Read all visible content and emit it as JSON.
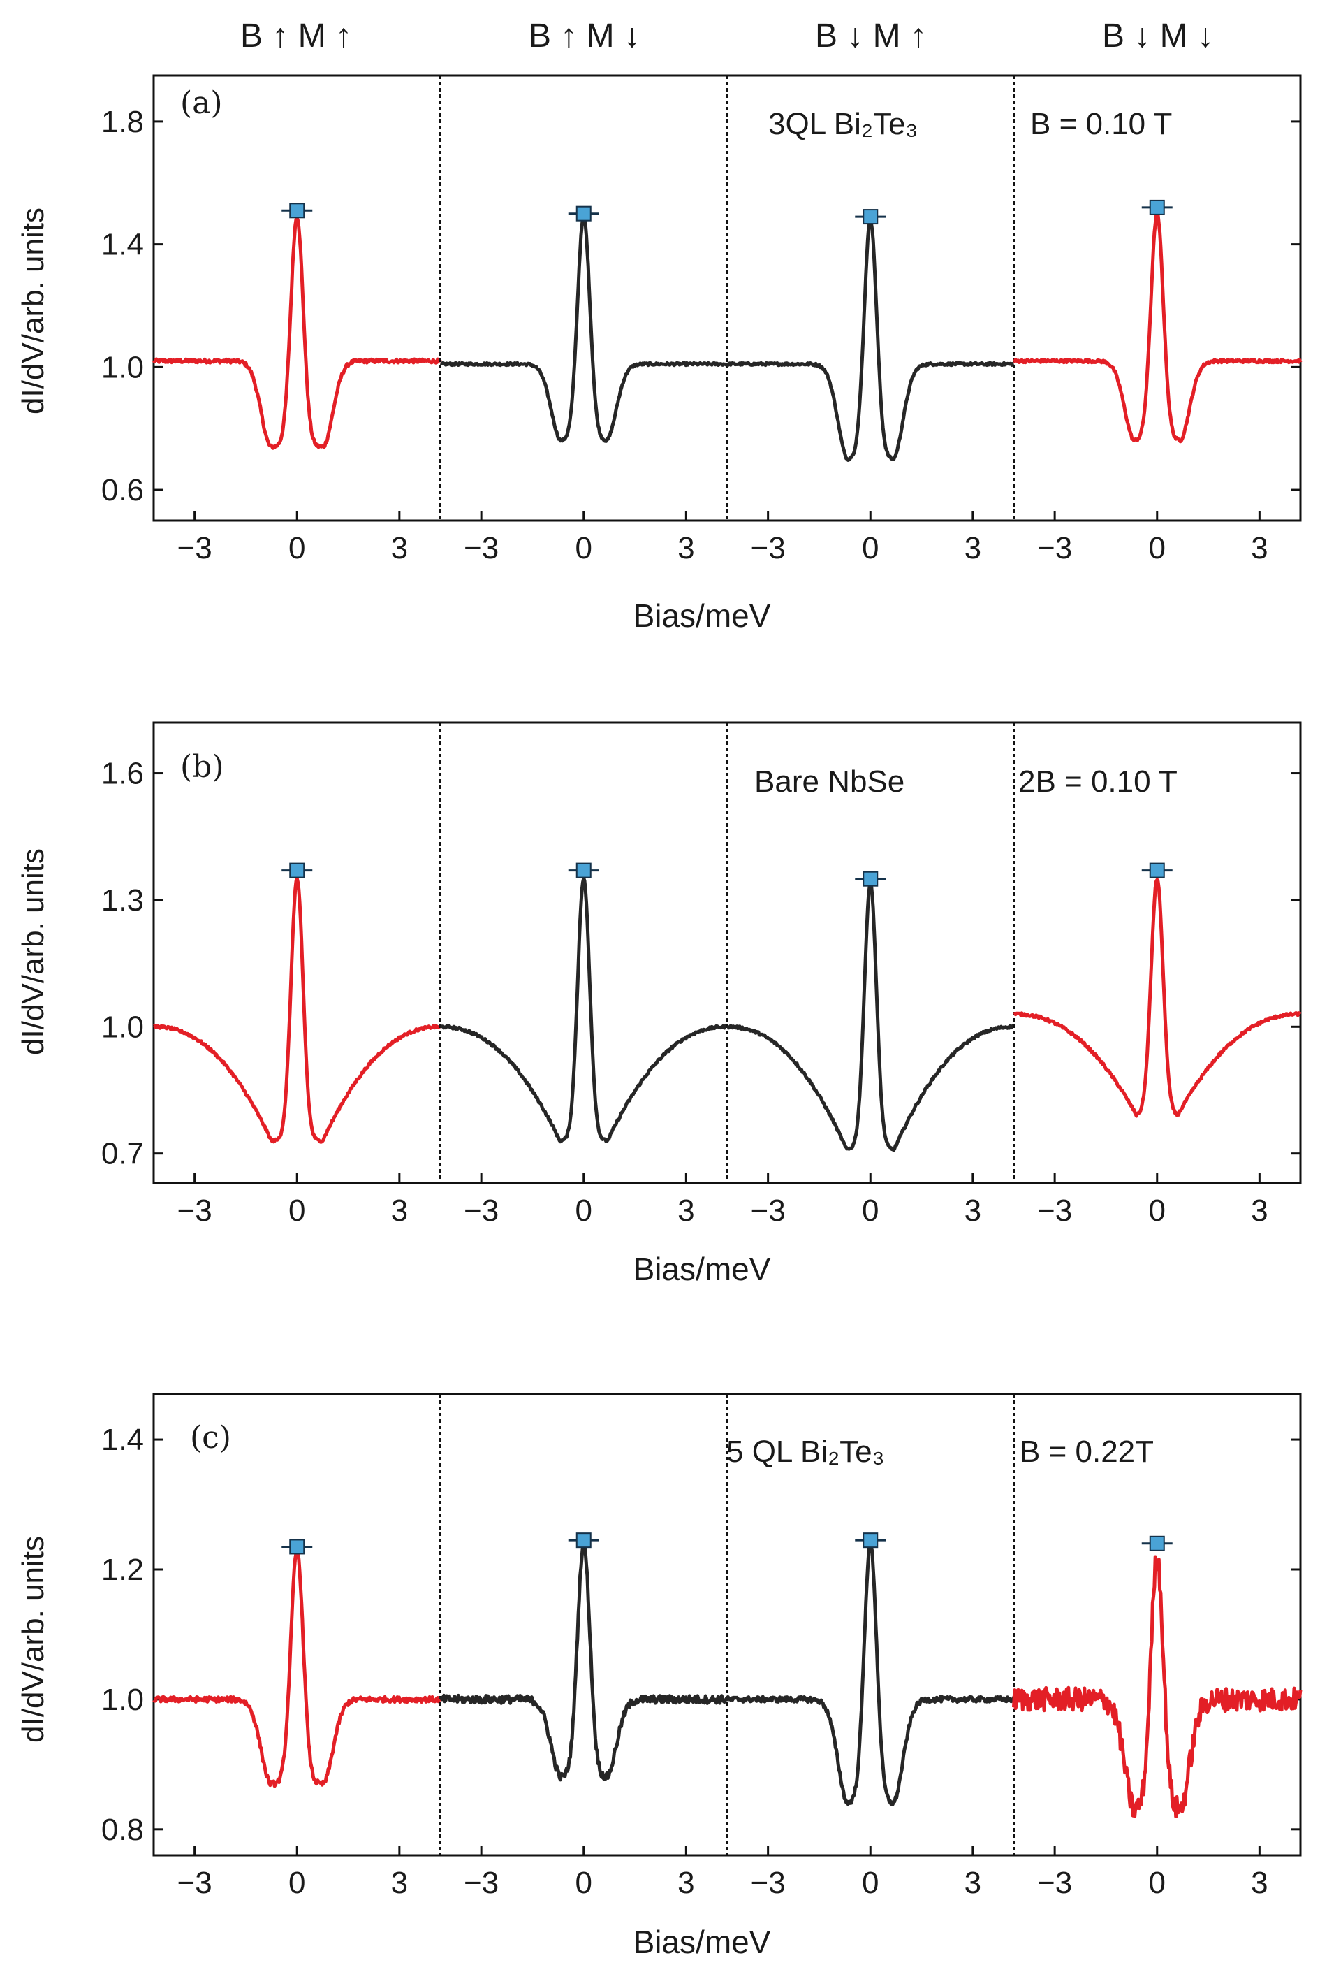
{
  "figure": {
    "header_labels": [
      "B ↑  M ↑",
      "B ↑  M ↓",
      "B ↓  M ↑",
      "B ↓  M ↓"
    ]
  },
  "colors": {
    "red": "#e31f26",
    "black": "#262626",
    "marker_fill": "#4aa3d6",
    "marker_stroke": "#15324a",
    "axis": "#111111"
  },
  "chart_data": [
    {
      "type": "line",
      "panel_label": "(a)",
      "annotation_left": "3QL Bi₂Te₃",
      "annotation_right": "B = 0.10 T",
      "ylabel": "dI/dV/arb. units",
      "xlabel": "Bias/meV",
      "ylim": [
        0.5,
        1.95
      ],
      "yticks": [
        0.6,
        1.0,
        1.4,
        1.8
      ],
      "ytick_labels": [
        "0.6",
        "1.0",
        "1.4",
        "1.8"
      ],
      "xlim": [
        -4.2,
        4.2
      ],
      "xticks": [
        -3,
        0,
        3
      ],
      "xtick_labels": [
        "−3",
        "0",
        "3"
      ],
      "series": [
        {
          "name": "B↑ M↑",
          "color": "red",
          "baseline_left": 1.02,
          "baseline_right": 1.02,
          "dip": 0.74,
          "dip_x": 0.75,
          "peak": 1.49,
          "noise": 0.006
        },
        {
          "name": "B↑ M↓",
          "color": "black",
          "baseline_left": 1.01,
          "baseline_right": 1.01,
          "dip": 0.76,
          "dip_x": 0.65,
          "peak": 1.49,
          "noise": 0.004
        },
        {
          "name": "B↓ M↑",
          "color": "black",
          "baseline_left": 1.01,
          "baseline_right": 1.01,
          "dip": 0.7,
          "dip_x": 0.65,
          "peak": 1.48,
          "noise": 0.004
        },
        {
          "name": "B↓ M↓",
          "color": "red",
          "baseline_left": 1.02,
          "baseline_right": 1.02,
          "dip": 0.76,
          "dip_x": 0.65,
          "peak": 1.5,
          "noise": 0.005
        }
      ],
      "peak_markers": [
        1.51,
        1.5,
        1.49,
        1.52
      ]
    },
    {
      "type": "line",
      "panel_label": "(b)",
      "annotation_left": "Bare NbSe",
      "annotation_right": "2B = 0.10 T",
      "ylabel": "dI/dV/arb. units",
      "xlabel": "Bias/meV",
      "ylim": [
        0.63,
        1.72
      ],
      "yticks": [
        0.7,
        1.0,
        1.3,
        1.6
      ],
      "ytick_labels": [
        "0.7",
        "1.0",
        "1.3",
        "1.6"
      ],
      "xlim": [
        -4.2,
        4.2
      ],
      "xticks": [
        -3,
        0,
        3
      ],
      "xtick_labels": [
        "−3",
        "0",
        "3"
      ],
      "series": [
        {
          "name": "B↑ M↑",
          "color": "red",
          "baseline_left": 1.0,
          "baseline_right": 1.0,
          "dip": 0.73,
          "dip_x": 0.75,
          "peak": 1.35,
          "noise": 0.003,
          "broad": true
        },
        {
          "name": "B↑ M↓",
          "color": "black",
          "baseline_left": 1.0,
          "baseline_right": 1.0,
          "dip": 0.73,
          "dip_x": 0.7,
          "peak": 1.35,
          "noise": 0.003,
          "broad": true
        },
        {
          "name": "B↓ M↑",
          "color": "black",
          "baseline_left": 1.0,
          "baseline_right": 1.0,
          "dip": 0.71,
          "dip_x": 0.7,
          "peak": 1.34,
          "noise": 0.003,
          "broad": true
        },
        {
          "name": "B↓ M↓",
          "color": "red",
          "baseline_left": 1.03,
          "baseline_right": 1.03,
          "dip": 0.79,
          "dip_x": 0.6,
          "peak": 1.35,
          "noise": 0.003,
          "broad": true
        }
      ],
      "peak_markers": [
        1.37,
        1.37,
        1.35,
        1.37
      ]
    },
    {
      "type": "line",
      "panel_label": "(c)",
      "annotation_left": "5 QL Bi₂Te₃",
      "annotation_right": "B = 0.22T",
      "ylabel": "dI/dV/arb. units",
      "xlabel": "Bias/meV",
      "ylim": [
        0.76,
        1.47
      ],
      "yticks": [
        0.8,
        1.0,
        1.2,
        1.4
      ],
      "ytick_labels": [
        "0.8",
        "1.0",
        "1.2",
        "1.4"
      ],
      "xlim": [
        -4.2,
        4.2
      ],
      "xticks": [
        -3,
        0,
        3
      ],
      "xtick_labels": [
        "−3",
        "0",
        "3"
      ],
      "series": [
        {
          "name": "B↑ M↑",
          "color": "red",
          "baseline_left": 1.0,
          "baseline_right": 1.0,
          "dip": 0.87,
          "dip_x": 0.75,
          "peak": 1.23,
          "noise": 0.004
        },
        {
          "name": "B↑ M↓",
          "color": "black",
          "baseline_left": 1.0,
          "baseline_right": 1.0,
          "dip": 0.88,
          "dip_x": 0.65,
          "peak": 1.24,
          "noise": 0.006
        },
        {
          "name": "B↓ M↑",
          "color": "black",
          "baseline_left": 1.0,
          "baseline_right": 1.0,
          "dip": 0.84,
          "dip_x": 0.65,
          "peak": 1.24,
          "noise": 0.004
        },
        {
          "name": "B↓ M↓",
          "color": "red",
          "baseline_left": 1.0,
          "baseline_right": 1.0,
          "dip": 0.83,
          "dip_x": 0.65,
          "peak": 1.22,
          "noise": 0.018
        }
      ],
      "peak_markers": [
        1.235,
        1.245,
        1.245,
        1.24
      ]
    }
  ]
}
